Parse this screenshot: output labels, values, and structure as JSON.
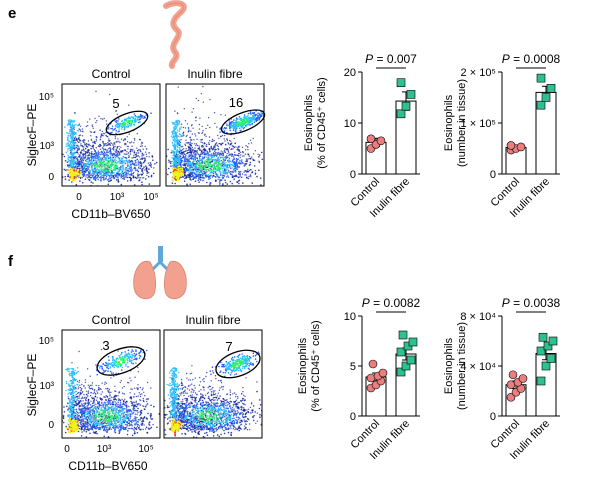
{
  "colors": {
    "control": "#e87e7e",
    "inulin": "#2fc08f",
    "gate": "#000000",
    "organ": "#f3a18f",
    "density": [
      "#0b1f9e",
      "#1f63ff",
      "#29c0ff",
      "#2cf26f",
      "#f2f21b",
      "#ff3a1a"
    ]
  },
  "panels": [
    {
      "letter": "e",
      "organ_icon": "intestine-icon",
      "flow": {
        "ylabel": "SiglecF–PE",
        "xlabel": "CD11b–BV650",
        "yticks": [
          "10⁵",
          "10³",
          "0"
        ],
        "xticks": [
          "0",
          "10³",
          "10⁵"
        ],
        "plots": [
          {
            "title": "Control",
            "gate_pct": "5"
          },
          {
            "title": "Inulin fibre",
            "gate_pct": "16"
          }
        ]
      }
    },
    {
      "letter": "f",
      "organ_icon": "lungs-icon",
      "flow": {
        "ylabel": "SiglecF–PE",
        "xlabel": "CD11b–BV650",
        "yticks": [
          "10⁵",
          "10³",
          "0"
        ],
        "xticks": [
          "0",
          "10³",
          "10⁵"
        ],
        "plots": [
          {
            "title": "Control",
            "gate_pct": "3"
          },
          {
            "title": "Inulin fibre",
            "gate_pct": "7"
          }
        ]
      }
    }
  ],
  "chart_data": [
    {
      "type": "bar",
      "panel": "e",
      "ylabel_line1": "Eosinophils",
      "ylabel_line2": "(% of CD45⁺ cells)",
      "categories": [
        "Control",
        "Inulin fibre"
      ],
      "values": [
        6.2,
        14.3
      ],
      "errors": [
        0.8,
        1.8
      ],
      "points": [
        [
          5.0,
          5.8,
          6.5,
          6.9
        ],
        [
          11.8,
          13.3,
          15.6,
          17.9
        ]
      ],
      "ylim": [
        0,
        20
      ],
      "yticks": [
        "0",
        "10",
        "20"
      ],
      "ytick_values": [
        0,
        10,
        20
      ],
      "pvalue": "P = 0.007"
    },
    {
      "type": "bar",
      "panel": "e",
      "ylabel_line1": "Eosinophils",
      "ylabel_line2": "(number in tissue)",
      "categories": [
        "Control",
        "Inulin fibre"
      ],
      "values": [
        52000,
        160000
      ],
      "errors": [
        3000,
        12000
      ],
      "points": [
        [
          47000,
          50000,
          53000,
          56000
        ],
        [
          135000,
          150000,
          168000,
          188000
        ]
      ],
      "ylim": [
        0,
        200000
      ],
      "yticks": [
        "2 × 10⁵",
        "1 × 10⁵",
        "0"
      ],
      "ytick_values": [
        200000,
        100000,
        0
      ],
      "pvalue": "P = 0.0008"
    },
    {
      "type": "bar",
      "panel": "f",
      "ylabel_line1": "Eosinophils",
      "ylabel_line2": "(% of CD45⁺ cells)",
      "categories": [
        "Control",
        "Inulin fibre"
      ],
      "values": [
        3.9,
        6.2
      ],
      "errors": [
        0.4,
        0.6
      ],
      "points": [
        [
          2.8,
          3.1,
          3.5,
          3.8,
          4.0,
          4.3,
          5.2
        ],
        [
          4.4,
          5.0,
          5.6,
          6.4,
          7.0,
          7.4,
          8.1
        ]
      ],
      "ylim": [
        0,
        10
      ],
      "yticks": [
        "0",
        "5",
        "10"
      ],
      "ytick_values": [
        0,
        5,
        10
      ],
      "pvalue": "P = 0.0082"
    },
    {
      "type": "bar",
      "panel": "f",
      "ylabel_line1": "Eosinophils",
      "ylabel_line2": "(number in tissue)",
      "categories": [
        "Control",
        "Inulin fibre"
      ],
      "values": [
        25000,
        50000
      ],
      "errors": [
        3000,
        5000
      ],
      "points": [
        [
          15000,
          19000,
          22000,
          25000,
          27000,
          30000,
          33000
        ],
        [
          28000,
          40000,
          46000,
          52000,
          56000,
          60000,
          63000
        ]
      ],
      "ylim": [
        0,
        80000
      ],
      "yticks": [
        "8 × 10⁴",
        "4 × 10⁴",
        "0"
      ],
      "ytick_values": [
        80000,
        40000,
        0
      ],
      "pvalue": "P = 0.0038"
    }
  ]
}
